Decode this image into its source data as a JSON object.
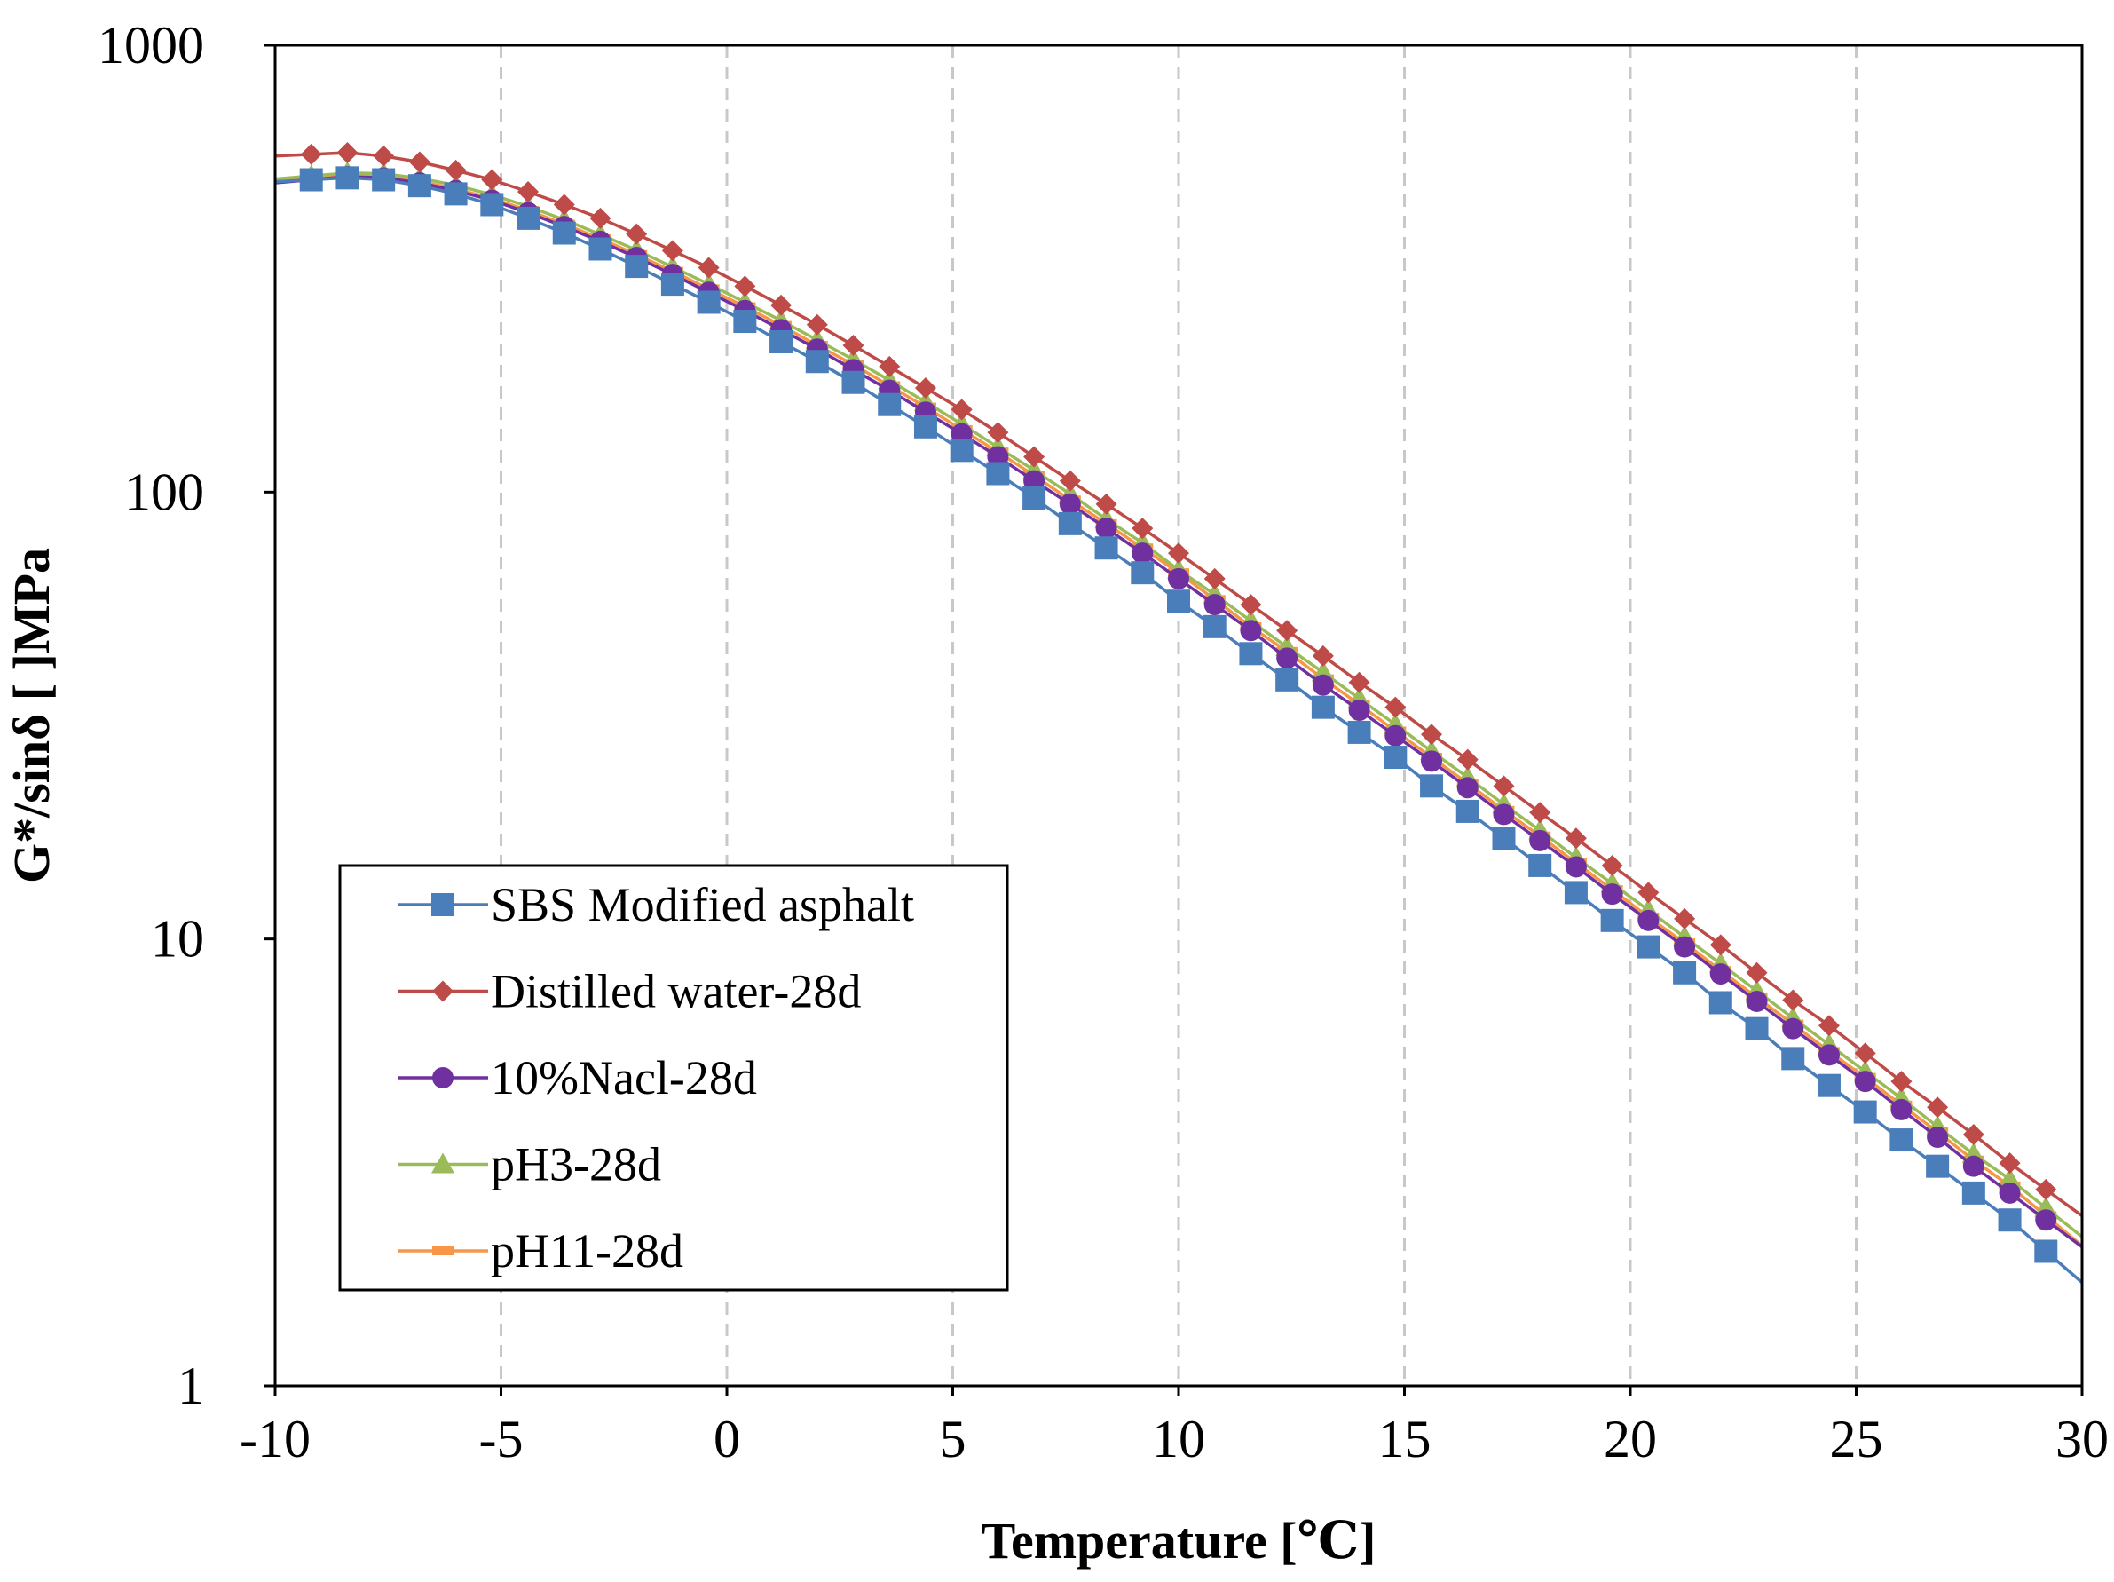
{
  "chart_data": {
    "type": "line",
    "title": "",
    "xlabel": "Temperature [℃]",
    "ylabel": "G*/sinδ [ ]MPa",
    "xlim": [
      -10,
      30
    ],
    "ylim": [
      1,
      1000
    ],
    "yscale": "log",
    "x_ticks": [
      -10,
      -5,
      0,
      5,
      10,
      15,
      20,
      25,
      30
    ],
    "x_tick_labels": [
      "-10",
      "-5",
      "0",
      "5",
      "10",
      "15",
      "20",
      "25",
      "30"
    ],
    "y_ticks": [
      1,
      10,
      100,
      1000
    ],
    "y_tick_labels": [
      "1",
      "10",
      "100",
      "1000"
    ],
    "grid": "vertical dashed",
    "legend_position": "lower-left",
    "x": [
      -9.2,
      -8.4,
      -7.6,
      -6.8,
      -6.0,
      -5.2,
      -4.4,
      -3.6,
      -2.8,
      -2.0,
      -1.2,
      -0.4,
      0.4,
      1.2,
      2.0,
      2.8,
      3.6,
      4.4,
      5.2,
      6.0,
      6.8,
      7.6,
      8.4,
      9.2,
      10.0,
      10.8,
      11.6,
      12.4,
      13.2,
      14.0,
      14.8,
      15.6,
      16.4,
      17.2,
      18.0,
      18.8,
      19.6,
      20.4,
      21.2,
      22.0,
      22.8,
      23.6,
      24.4,
      25.2,
      26.0,
      26.8,
      27.6,
      28.4,
      29.2
    ],
    "series": [
      {
        "name": "SBS Modified asphalt",
        "color": "#4a7ebb",
        "marker": "square",
        "values": [
          500,
          505,
          500,
          485,
          465,
          440,
          410,
          380,
          350,
          320,
          292,
          266,
          241,
          217,
          196,
          176,
          157,
          140,
          124,
          110,
          97,
          85,
          75,
          66,
          57,
          50,
          43.5,
          38,
          33,
          29,
          25.5,
          22,
          19.3,
          16.8,
          14.6,
          12.7,
          11,
          9.6,
          8.4,
          7.2,
          6.3,
          5.4,
          4.7,
          4.1,
          3.55,
          3.1,
          2.7,
          2.35,
          2.0
        ]
      },
      {
        "name": "Distilled water-28d",
        "color": "#be4b48",
        "marker": "diamond",
        "values": [
          570,
          575,
          565,
          548,
          525,
          500,
          470,
          440,
          410,
          378,
          347,
          318,
          289,
          262,
          237,
          213,
          191,
          171,
          153,
          136,
          120,
          106,
          94,
          83,
          73,
          64,
          56,
          49,
          43,
          37.5,
          33,
          28.7,
          25.2,
          22,
          19.2,
          16.8,
          14.6,
          12.7,
          11.1,
          9.7,
          8.4,
          7.3,
          6.4,
          5.55,
          4.8,
          4.2,
          3.65,
          3.15,
          2.75
        ]
      },
      {
        "name": "10%Nacl-28d",
        "color": "#7030a0",
        "marker": "circle",
        "values": [
          500,
          508,
          505,
          492,
          473,
          450,
          422,
          393,
          364,
          335,
          307,
          280,
          255,
          231,
          209,
          188,
          169,
          151,
          135,
          120,
          106,
          94,
          83,
          73,
          64,
          56,
          49,
          42.5,
          37,
          32.5,
          28.5,
          25,
          21.8,
          19,
          16.6,
          14.5,
          12.6,
          11,
          9.6,
          8.35,
          7.25,
          6.3,
          5.5,
          4.8,
          4.15,
          3.6,
          3.1,
          2.7,
          2.35
        ]
      },
      {
        "name": "pH3-28d",
        "color": "#9bbb59",
        "marker": "triangle",
        "values": [
          510,
          518,
          516,
          504,
          486,
          463,
          436,
          407,
          377,
          348,
          319,
          292,
          266,
          242,
          219,
          198,
          178,
          159,
          142,
          126,
          112,
          99,
          87,
          77,
          67,
          59,
          51.5,
          45,
          39.5,
          34.5,
          30.2,
          26.3,
          23,
          20,
          17.5,
          15.2,
          13.3,
          11.6,
          10.1,
          8.8,
          7.65,
          6.65,
          5.8,
          5.05,
          4.4,
          3.8,
          3.3,
          2.9,
          2.5
        ]
      },
      {
        "name": "pH11-28d",
        "color": "#f79646",
        "marker": "dash",
        "values": [
          505,
          512,
          509,
          496,
          477,
          454,
          427,
          398,
          369,
          340,
          312,
          285,
          260,
          236,
          213,
          193,
          173,
          155,
          138,
          123,
          109,
          96,
          85,
          75,
          66,
          57.5,
          50,
          44,
          38.2,
          33.5,
          29.2,
          25.5,
          22.3,
          19.4,
          17,
          14.8,
          12.9,
          11.2,
          9.8,
          8.5,
          7.4,
          6.45,
          5.6,
          4.9,
          4.25,
          3.7,
          3.2,
          2.8,
          2.4
        ]
      }
    ]
  }
}
